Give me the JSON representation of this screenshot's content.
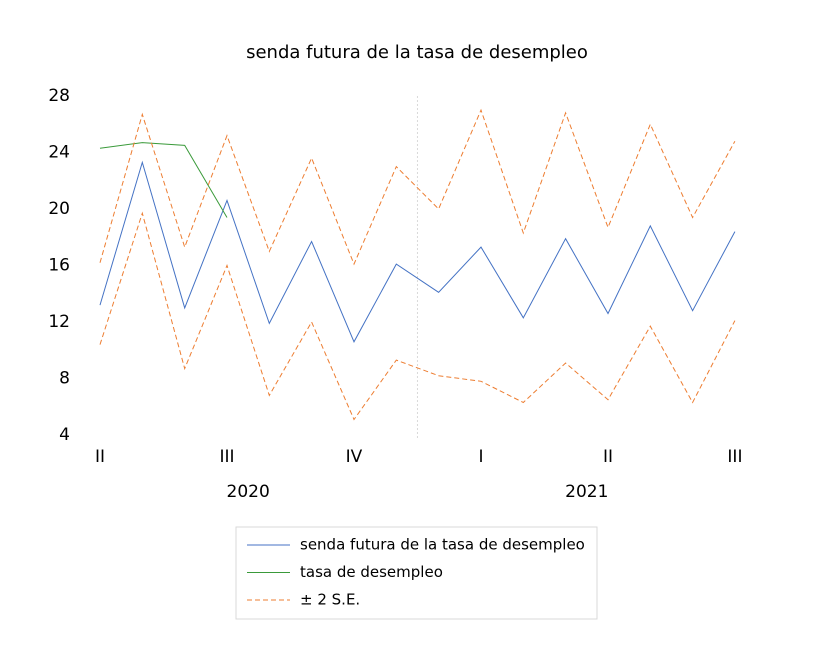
{
  "chart_data": {
    "type": "line",
    "title": "senda futura de la tasa de desempleo",
    "categories": [
      "II",
      null,
      null,
      "III",
      null,
      null,
      "IV",
      null,
      null,
      "I",
      null,
      null,
      "II",
      null,
      null,
      "III"
    ],
    "years": [
      "2020",
      "2021"
    ],
    "ylim": [
      4,
      28
    ],
    "yticks": [
      4,
      8,
      12,
      16,
      20,
      24,
      28
    ],
    "grid": false,
    "series": [
      {
        "name": "senda futura de la tasa de desempleo",
        "color": "#4472c4",
        "style": "solid",
        "values": [
          13.2,
          23.3,
          13.0,
          20.6,
          11.9,
          17.7,
          10.6,
          16.1,
          14.1,
          17.3,
          12.3,
          17.9,
          12.6,
          18.8,
          12.8,
          18.4
        ]
      },
      {
        "name": "tasa de desempleo",
        "color": "#3a9a3a",
        "style": "solid",
        "values": [
          24.3,
          24.7,
          24.5,
          19.4,
          null,
          null,
          null,
          null,
          null,
          null,
          null,
          null,
          null,
          null,
          null,
          null
        ]
      },
      {
        "name": "± 2 S.E.",
        "color": "#ed7d31",
        "style": "dashed",
        "values": [
          16.2,
          26.7,
          17.3,
          25.2,
          17.0,
          23.6,
          16.1,
          23.0,
          20.0,
          27.0,
          18.3,
          26.8,
          18.7,
          26.0,
          19.4,
          24.8
        ]
      },
      {
        "color": "#ed7d31",
        "style": "dashed",
        "values": [
          10.4,
          19.7,
          8.7,
          16.0,
          6.8,
          12.0,
          5.1,
          9.3,
          8.2,
          7.8,
          6.3,
          9.1,
          6.5,
          11.7,
          6.3,
          12.1
        ]
      }
    ]
  }
}
